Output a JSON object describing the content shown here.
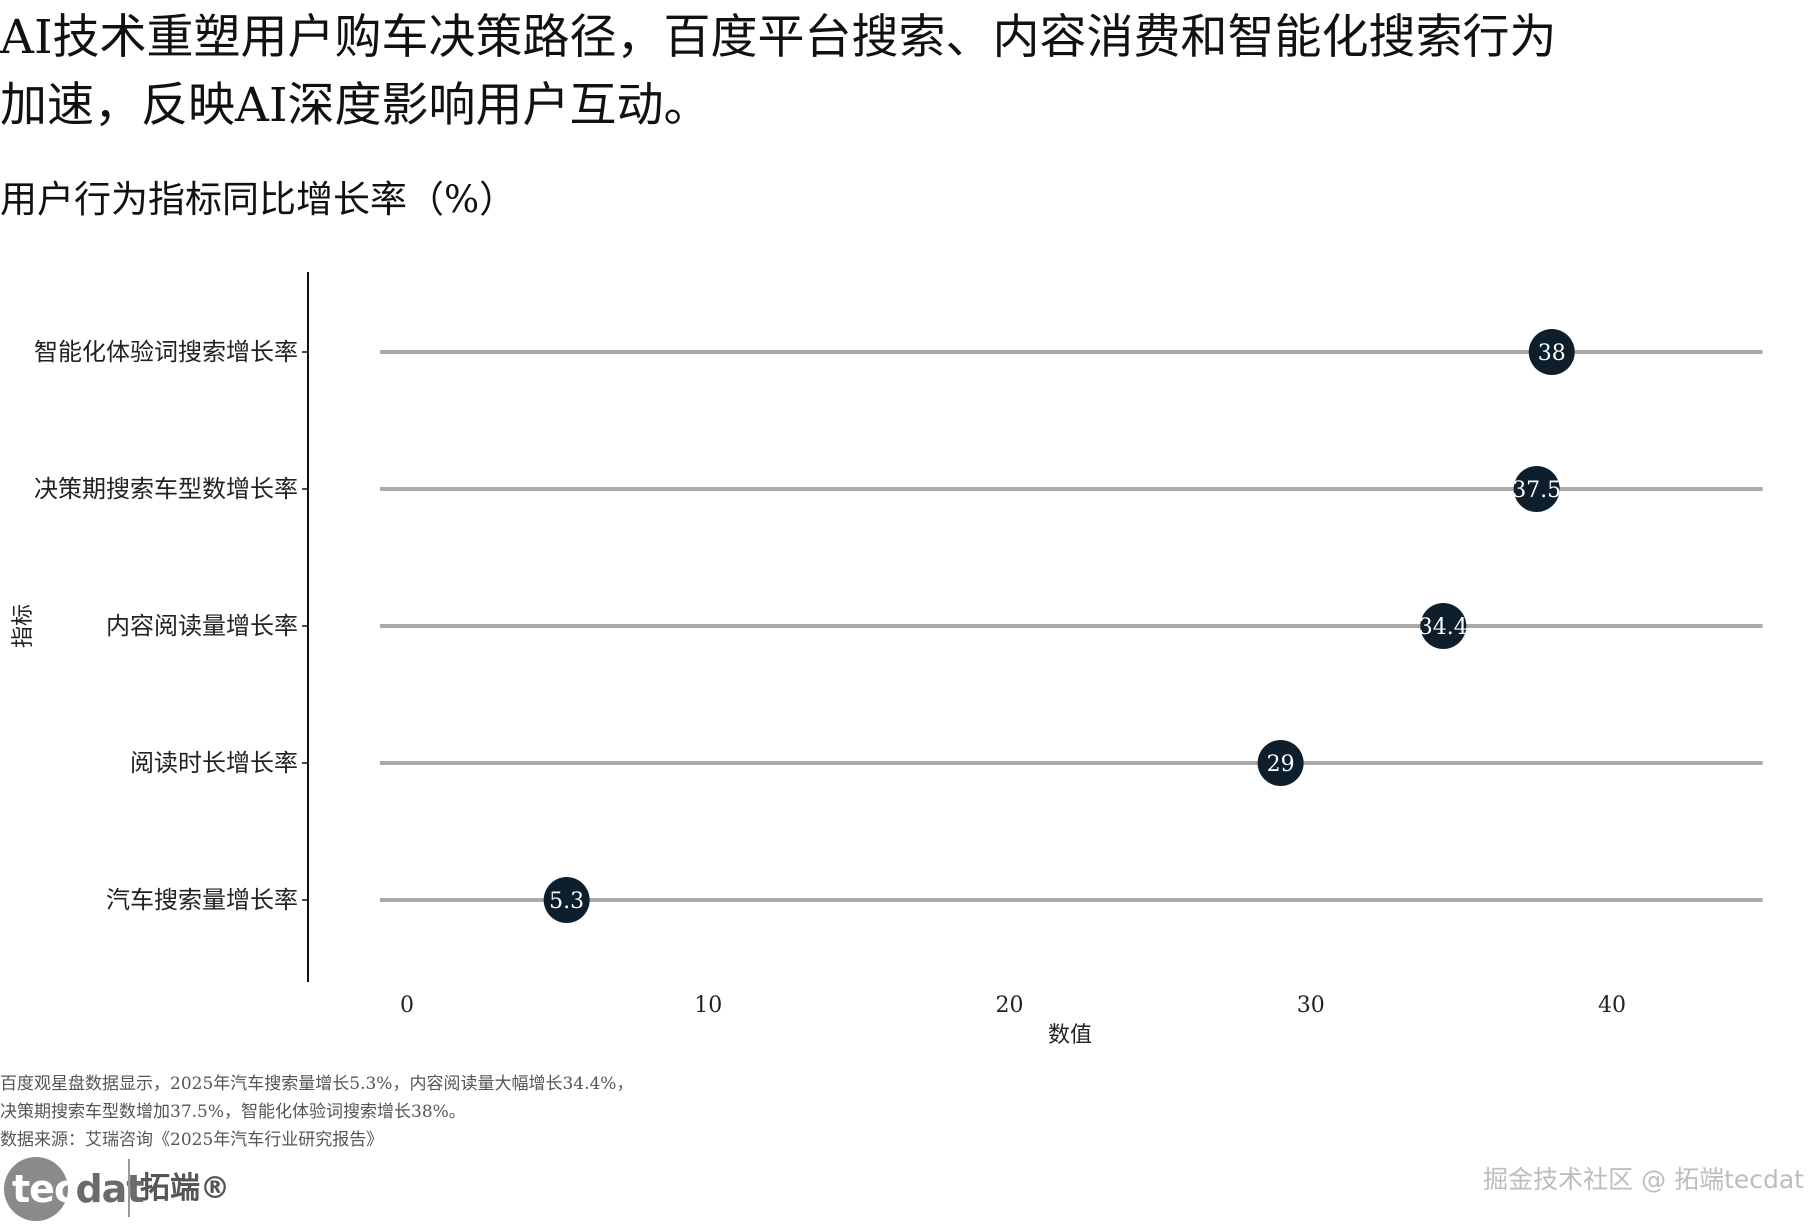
{
  "headline": {
    "line1": "AI技术重塑用户购车决策路径，百度平台搜索、内容消费和智能化搜索行为",
    "line2": "加速，反映AI深度影响用户互动。"
  },
  "chart_title": "用户行为指标同比增长率（%）",
  "chart_data": {
    "type": "lollipop",
    "title": "用户行为指标同比增长率（%）",
    "xlabel": "数值",
    "ylabel": "指标",
    "xlim": [
      -1,
      45
    ],
    "x_ticks": [
      0,
      10,
      20,
      30,
      40
    ],
    "categories": [
      "智能化体验词搜索增长率",
      "决策期搜索车型数增长率",
      "内容阅读量增长率",
      "阅读时长增长率",
      "汽车搜索量增长率"
    ],
    "values": [
      38,
      37.5,
      34.4,
      29,
      5.3
    ],
    "data_labels": [
      "38",
      "37.5",
      "34.4",
      "29",
      "5.3"
    ],
    "grid": false,
    "colors": {
      "point": "#0d1f2d",
      "stem": "#aaaaaa",
      "label": "#ffffff",
      "axis": "#111111"
    }
  },
  "notes": {
    "line1": "百度观星盘数据显示，2025年汽车搜索量增长5.3%，内容阅读量大幅增长34.4%，",
    "line2": "决策期搜索车型数增加37.5%，智能化体验词搜索增长38%。",
    "line3": "数据来源：艾瑞咨询《2025年汽车行业研究报告》"
  },
  "logo": {
    "text_tec": "tec",
    "text_dat": "dat",
    "cn": "拓端®"
  },
  "watermark": "掘金技术社区 @ 拓端tecdat"
}
